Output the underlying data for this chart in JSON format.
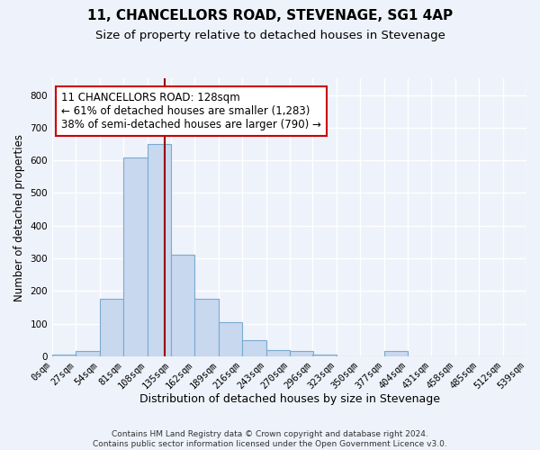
{
  "title1": "11, CHANCELLORS ROAD, STEVENAGE, SG1 4AP",
  "title2": "Size of property relative to detached houses in Stevenage",
  "xlabel": "Distribution of detached houses by size in Stevenage",
  "ylabel": "Number of detached properties",
  "bin_starts": [
    0,
    27,
    54,
    81,
    108,
    135,
    162,
    189,
    216,
    243,
    270,
    296,
    323,
    350,
    377,
    404,
    431,
    458,
    485,
    512,
    539
  ],
  "bin_width": 27,
  "bar_heights": [
    5,
    15,
    175,
    610,
    650,
    310,
    175,
    105,
    50,
    18,
    15,
    5,
    0,
    0,
    15,
    0,
    0,
    0,
    0,
    0,
    0
  ],
  "bar_color": "#c8d8ee",
  "bar_edgecolor": "#7aaad0",
  "property_line_x": 128,
  "property_line_color": "#990000",
  "annotation_line1": "11 CHANCELLORS ROAD: 128sqm",
  "annotation_line2": "← 61% of detached houses are smaller (1,283)",
  "annotation_line3": "38% of semi-detached houses are larger (790) →",
  "annotation_box_edgecolor": "#cc0000",
  "annotation_box_facecolor": "#ffffff",
  "ylim": [
    0,
    850
  ],
  "ytick_values": [
    0,
    100,
    200,
    300,
    400,
    500,
    600,
    700,
    800
  ],
  "background_color": "#eef2fa",
  "grid_color": "#ffffff",
  "footer_line1": "Contains HM Land Registry data © Crown copyright and database right 2024.",
  "footer_line2": "Contains public sector information licensed under the Open Government Licence v3.0.",
  "title1_fontsize": 11,
  "title2_fontsize": 9.5,
  "xlabel_fontsize": 9,
  "ylabel_fontsize": 8.5,
  "tick_fontsize": 7.5,
  "annotation_fontsize": 8.5,
  "footer_fontsize": 6.5
}
